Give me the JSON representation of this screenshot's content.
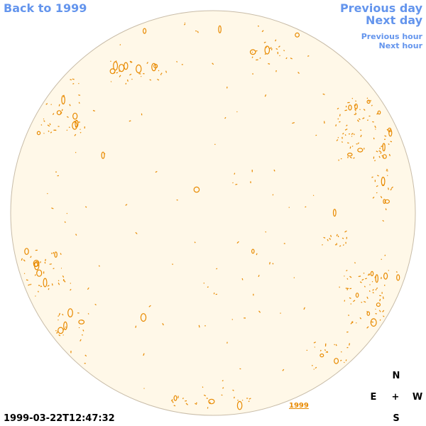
{
  "nav": {
    "back": "Back to 1999",
    "previous_day": "Previous day",
    "next_day": "Next day",
    "previous_hour": "Previous hour",
    "next_hour": "Next hour"
  },
  "timestamp": "1999-03-22T12:47:32",
  "year_link": "1999",
  "compass": {
    "north": "N",
    "east": "E",
    "center": "+",
    "west": "W",
    "south": "S"
  },
  "colors": {
    "disk_fill": "#fff8e8",
    "disk_edge": "#c8bca8",
    "feature": "#e88a00",
    "link": "#6495ed"
  }
}
